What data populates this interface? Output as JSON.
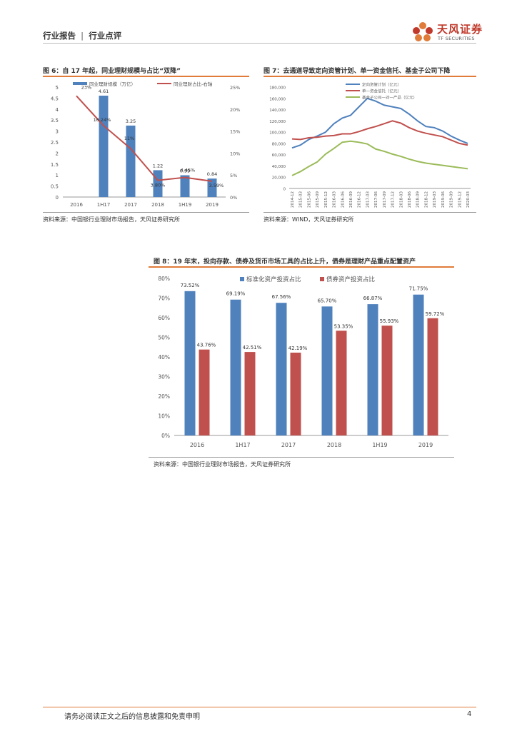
{
  "header": {
    "section": "行业报告",
    "separator": "|",
    "subsection": "行业点评",
    "logo_cn": "天风证券",
    "logo_en": "TF SECURITIES"
  },
  "fig6": {
    "title": "图 6：自 17 年起，同业理财规模与占比“双降”",
    "source": "资料来源：中国银行业理财市场报告，天风证券研究所"
  },
  "fig7": {
    "title": "图 7：去通道导致定向资管计划、单一资金信托、基金子公司下降",
    "source": "资料来源：WIND，天风证券研究所"
  },
  "fig8": {
    "title": "图 8：19 年末，投向存款、债券及货币市场工具的占比上升，债券是理财产品重点配置资产",
    "source": "资料来源：中国银行业理财市场报告，天风证券研究所"
  },
  "footer": {
    "disclaimer": "请务必阅读正文之后的信息披露和免责申明",
    "page": "4"
  },
  "colors": {
    "blue": "#4f81bd",
    "red": "#c0504d",
    "green": "#9bbb59",
    "orange": "#e07b39"
  },
  "chart_data": [
    {
      "type": "bar+line",
      "categories": [
        "2016",
        "1H17",
        "2017",
        "2018",
        "1H19",
        "2019"
      ],
      "series": [
        {
          "name": "同业理财规模（万亿）",
          "axis": "left",
          "values": [
            null,
            4.61,
            3.25,
            1.22,
            0.99,
            0.84
          ],
          "labels": [
            "",
            "4.61",
            "3.25",
            "1.22",
            "0.99",
            "0.84"
          ]
        },
        {
          "name": "同业理财占比-右轴",
          "axis": "right",
          "values": [
            23,
            16.24,
            11,
            3.8,
            4.45,
            3.59
          ],
          "labels": [
            "23%",
            "16.24%",
            "11%",
            "3.80%",
            "4.45%",
            "3.59%"
          ]
        }
      ],
      "ylim_left": [
        0,
        5
      ],
      "yticks_left": [
        "0",
        "0.5",
        "1",
        "1.5",
        "2",
        "2.5",
        "3",
        "3.5",
        "4",
        "4.5",
        "5"
      ],
      "ylim_right": [
        0,
        25
      ],
      "yticks_right": [
        "0%",
        "5%",
        "10%",
        "15%",
        "20%",
        "25%"
      ]
    },
    {
      "type": "line",
      "categories": [
        "2014-12",
        "2015-03",
        "2015-06",
        "2015-09",
        "2015-12",
        "2016-03",
        "2016-06",
        "2016-09",
        "2016-12",
        "2017-03",
        "2017-06",
        "2017-09",
        "2017-12",
        "2018-03",
        "2018-06",
        "2018-09",
        "2018-12",
        "2019-03",
        "2019-06",
        "2019-09",
        "2019-12",
        "2020-03"
      ],
      "series": [
        {
          "name": "定向资管计划（亿元）",
          "values": [
            72000,
            77000,
            87000,
            93000,
            100000,
            115000,
            125000,
            130000,
            145000,
            160000,
            155000,
            148000,
            145000,
            142000,
            132000,
            120000,
            110000,
            108000,
            102000,
            93000,
            86000,
            80000
          ]
        },
        {
          "name": "单一资金信托（亿元）",
          "values": [
            88000,
            87000,
            90000,
            91000,
            93000,
            94000,
            97000,
            97000,
            101000,
            106000,
            110000,
            115000,
            120000,
            116000,
            108000,
            102000,
            98000,
            95000,
            92000,
            86000,
            80000,
            77000
          ]
        },
        {
          "name": "基金子公司一对一产品（亿元）",
          "values": [
            23000,
            30000,
            39000,
            47000,
            61000,
            71000,
            82000,
            84000,
            82000,
            79000,
            70000,
            66000,
            61000,
            57000,
            52000,
            48000,
            45000,
            43000,
            41000,
            39000,
            37000,
            35000
          ]
        }
      ],
      "ylim": [
        0,
        180000
      ],
      "yticks": [
        "0",
        "20,000",
        "40,000",
        "60,000",
        "80,000",
        "100,000",
        "120,000",
        "140,000",
        "160,000",
        "180,000"
      ]
    },
    {
      "type": "bar",
      "categories": [
        "2016",
        "1H17",
        "2017",
        "2018",
        "1H19",
        "2019"
      ],
      "series": [
        {
          "name": "标准化资产投资占比",
          "values": [
            73.52,
            69.19,
            67.56,
            65.7,
            66.87,
            71.75
          ],
          "labels": [
            "73.52%",
            "69.19%",
            "67.56%",
            "65.70%",
            "66.87%",
            "71.75%"
          ]
        },
        {
          "name": "债券资产投资占比",
          "values": [
            43.76,
            42.51,
            42.19,
            53.35,
            55.93,
            59.72
          ],
          "labels": [
            "43.76%",
            "42.51%",
            "42.19%",
            "53.35%",
            "55.93%",
            "59.72%"
          ]
        }
      ],
      "ylim": [
        0,
        80
      ],
      "yticks": [
        "0%",
        "10%",
        "20%",
        "30%",
        "40%",
        "50%",
        "60%",
        "70%",
        "80%"
      ]
    }
  ]
}
